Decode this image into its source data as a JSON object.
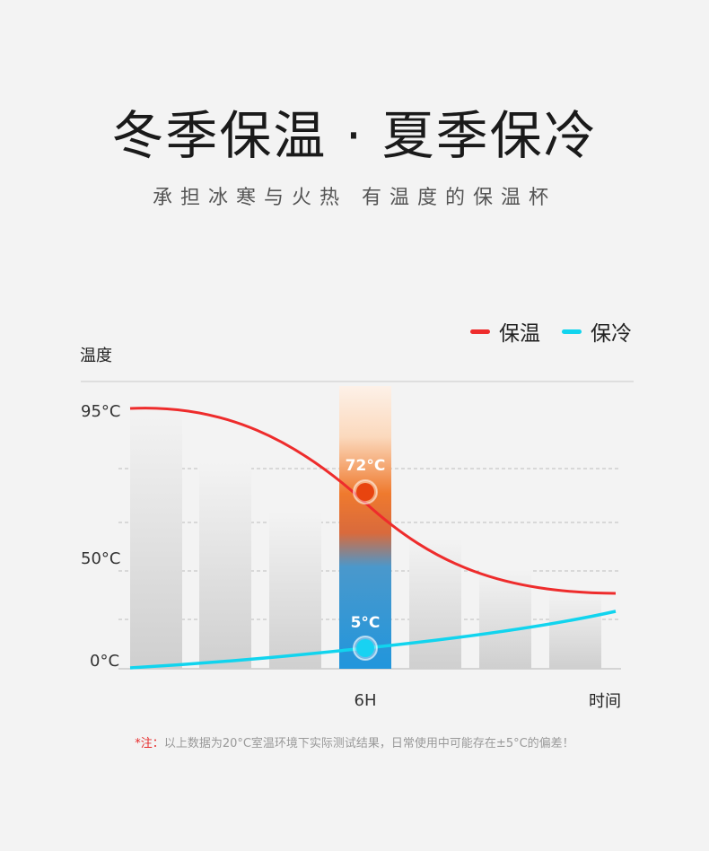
{
  "header": {
    "title": "冬季保温 · 夏季保冷",
    "subtitle": "承担冰寒与火热  有温度的保温杯"
  },
  "legend": {
    "items": [
      {
        "label": "保温",
        "color": "#ee2c2c"
      },
      {
        "label": "保冷",
        "color": "#11d4ee"
      }
    ]
  },
  "chart_data": {
    "type": "line",
    "ylabel": "温度",
    "xlabel": "时间",
    "y_ticks": [
      "95°C",
      "50°C",
      "0°C"
    ],
    "x_ticks": [
      "6H"
    ],
    "ylim": [
      0,
      100
    ],
    "grid": "dashed horizontal",
    "legend_position": "top-right",
    "series": [
      {
        "name": "保温",
        "color": "#ee2c2c",
        "points": [
          [
            0,
            95
          ],
          [
            6,
            72
          ],
          [
            12,
            28
          ]
        ]
      },
      {
        "name": "保冷",
        "color": "#11d4ee",
        "points": [
          [
            0,
            0
          ],
          [
            6,
            5
          ],
          [
            12,
            20
          ]
        ]
      }
    ],
    "annotations": [
      {
        "label": "72°C",
        "x": 6,
        "y": 72
      },
      {
        "label": "5°C",
        "x": 6,
        "y": 5
      }
    ]
  },
  "footnote": {
    "mark": "*注：",
    "text": "以上数据为20°C室温环境下实际测试结果，日常使用中可能存在±5°C的偏差！"
  }
}
